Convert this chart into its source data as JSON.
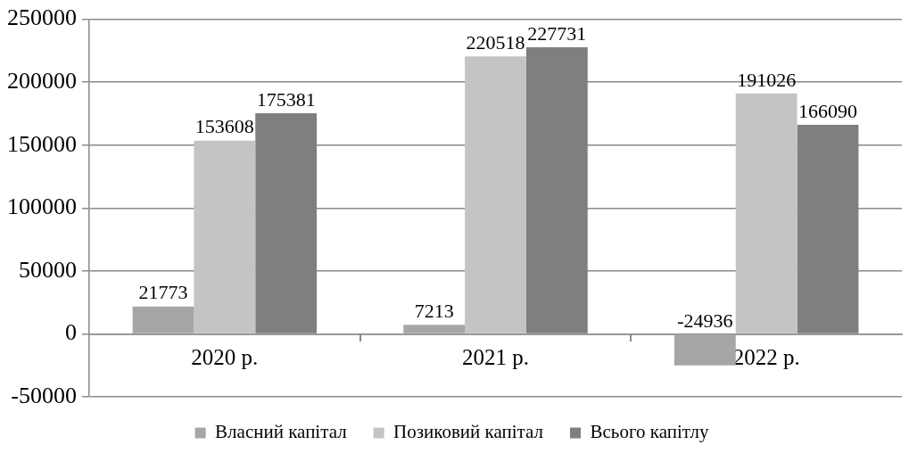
{
  "chart_data": {
    "type": "bar",
    "categories": [
      "2020 р.",
      "2021 р.",
      "2022 р."
    ],
    "series": [
      {
        "name": "Власний капітал",
        "color": "#a6a6a6",
        "values": [
          21773,
          7213,
          -24936
        ]
      },
      {
        "name": "Позиковий капітал",
        "color": "#c4c4c4",
        "values": [
          153608,
          220518,
          191026
        ]
      },
      {
        "name": "Всього капітлу",
        "color": "#7f7f7f",
        "values": [
          175381,
          227731,
          166090
        ]
      }
    ],
    "ylim": [
      -50000,
      250000
    ],
    "yticks": [
      -50000,
      0,
      50000,
      100000,
      150000,
      200000,
      250000
    ],
    "grid": "y",
    "legend": "bottom",
    "data_labels": true
  }
}
